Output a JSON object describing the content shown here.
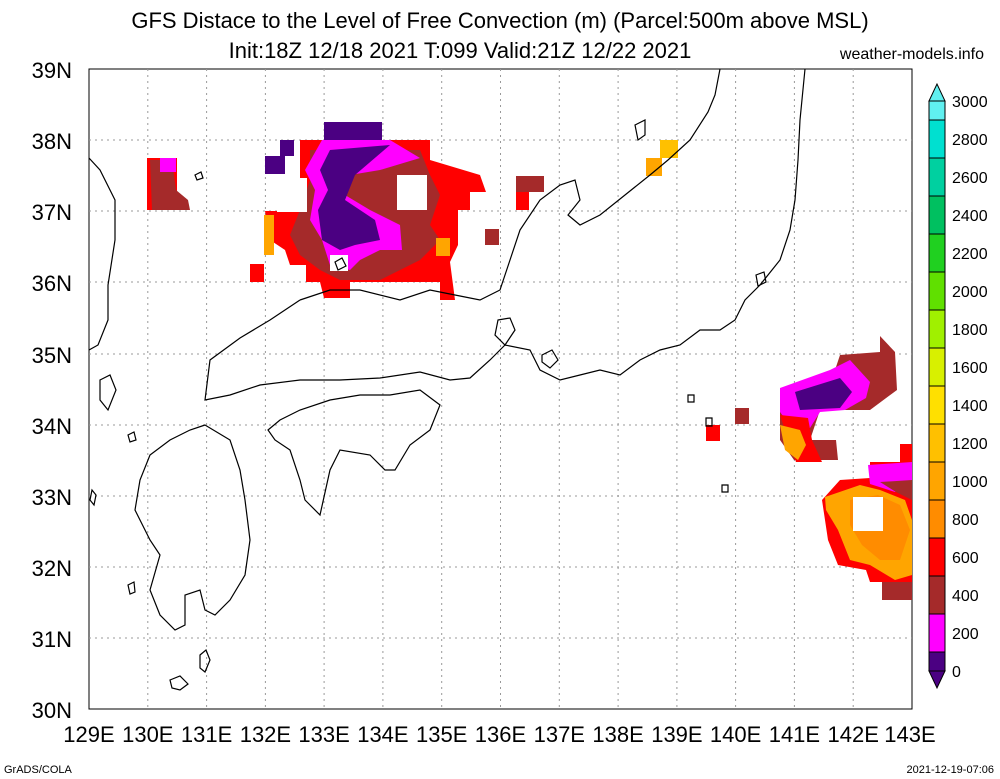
{
  "header": {
    "title": "GFS Distace to the Level of Free Convection (m) (Parcel:500m above MSL)",
    "subtitle": "Init:18Z 12/18 2021 T:099 Valid:21Z 12/22 2021",
    "site": "weather-models.info"
  },
  "footer": {
    "left": "GrADS/COLA",
    "right": "2021-12-19-07:06"
  },
  "map": {
    "lon_labels": [
      "129E",
      "130E",
      "131E",
      "132E",
      "133E",
      "134E",
      "135E",
      "136E",
      "137E",
      "138E",
      "139E",
      "140E",
      "141E",
      "142E",
      "143E"
    ],
    "lat_labels": [
      "39N",
      "38N",
      "37N",
      "36N",
      "35N",
      "34N",
      "33N",
      "32N",
      "31N",
      "30N"
    ],
    "lon_range": [
      129,
      143
    ],
    "lat_range": [
      30,
      39
    ]
  },
  "colorbar": {
    "labels": [
      "3000",
      "2800",
      "2600",
      "2400",
      "2200",
      "2000",
      "1800",
      "1600",
      "1400",
      "1200",
      "1000",
      "800",
      "600",
      "400",
      "200",
      "0"
    ],
    "colors": {
      "c0": "#4b0082",
      "c200": "#ff00ff",
      "c400": "#a52a2a",
      "c600": "#ff0000",
      "c800": "#ff8c00",
      "c1000": "#ffa500",
      "c1200": "#ffc000",
      "c1400": "#ffe000",
      "c1600": "#d8f000",
      "c1800": "#a0f000",
      "c2000": "#60e000",
      "c2200": "#20d020",
      "c2400": "#00c060",
      "c2600": "#00d0a0",
      "c2800": "#00e0d0",
      "c3000": "#60f0f0"
    }
  }
}
